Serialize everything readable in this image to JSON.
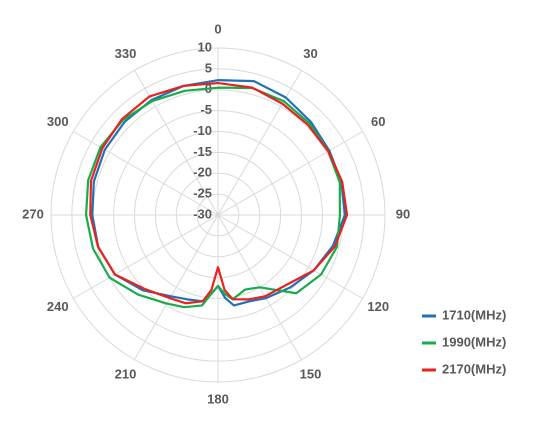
{
  "chart_data": {
    "type": "polar",
    "x": [
      0,
      15,
      30,
      45,
      60,
      75,
      90,
      105,
      120,
      135,
      150,
      160,
      170,
      175,
      180,
      185,
      190,
      200,
      210,
      225,
      240,
      255,
      270,
      285,
      300,
      315,
      330,
      345
    ],
    "xlim": [
      0,
      360
    ],
    "xticks": [
      0,
      30,
      60,
      90,
      120,
      150,
      180,
      210,
      240,
      270,
      300,
      330
    ],
    "ylim": [
      -30,
      10
    ],
    "yticks": [
      -30,
      -25,
      -20,
      -15,
      -10,
      -5,
      0,
      5,
      10
    ],
    "grid": true,
    "legend": "right",
    "series": [
      {
        "name": "1710(MHz)",
        "color": "#2171b5",
        "values": [
          2.3,
          3.2,
          2.5,
          1.5,
          0.8,
          0.6,
          0.4,
          -1.5,
          -3.5,
          -5.5,
          -7,
          -8,
          -8,
          -10,
          -13,
          -11,
          -9,
          -8.5,
          -7.5,
          -4.5,
          -1.5,
          -0.3,
          0.1,
          0.8,
          1.3,
          1.6,
          1.8,
          2.0
        ]
      },
      {
        "name": "1990(MHz)",
        "color": "#1aab4c",
        "values": [
          0.5,
          1.5,
          1.5,
          1,
          0.5,
          0.2,
          -0.8,
          -0.5,
          -1.5,
          -3.5,
          -10,
          -11,
          -9.5,
          -11,
          -13,
          -11,
          -8,
          -6.5,
          -5.5,
          -3,
          0,
          1,
          1.6,
          2.2,
          2.5,
          2.2,
          1.5,
          0.8
        ]
      },
      {
        "name": "2170(MHz)",
        "color": "#e8231f",
        "values": [
          1.6,
          1.6,
          0.8,
          0.5,
          0.5,
          0.8,
          0.9,
          -1,
          -3.5,
          -6.5,
          -7.5,
          -8.5,
          -9.5,
          -12,
          -17.5,
          -12,
          -9,
          -7.5,
          -7,
          -5,
          -1.5,
          -0.3,
          0.6,
          1.5,
          2,
          2.5,
          2.8,
          2
        ]
      }
    ]
  }
}
